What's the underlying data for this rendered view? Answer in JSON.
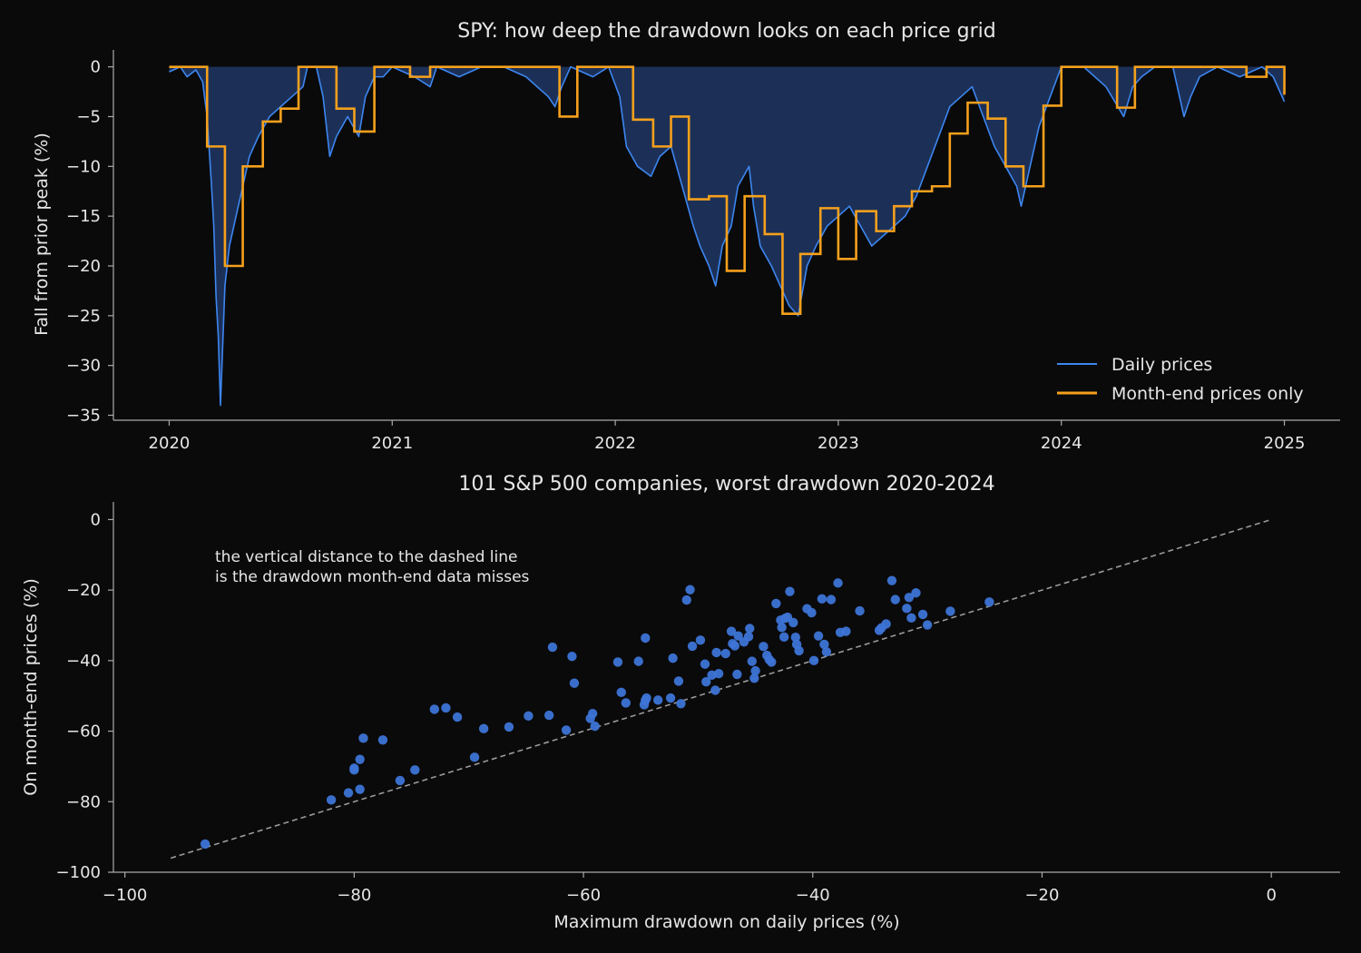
{
  "colors": {
    "background": "#0a0a0a",
    "text": "#e6e6e6",
    "axis": "#aaaaaa",
    "daily_line": "#3d86f0",
    "area_fill": "#1c3057",
    "month_end_line": "#f5a01c",
    "scatter_point": "#3d74d6",
    "diagonal": "#9a9a9a"
  },
  "chart_data": [
    {
      "type": "line",
      "title": "SPY: how deep the drawdown looks on each price grid",
      "xlabel": "",
      "ylabel": "Fall from prior peak (%)",
      "xlim": [
        2019.75,
        2025.25
      ],
      "ylim": [
        -35.5,
        1.7
      ],
      "xticks": [
        2020,
        2021,
        2022,
        2023,
        2024,
        2025
      ],
      "xtick_labels": [
        "2020",
        "2021",
        "2022",
        "2023",
        "2024",
        "2025"
      ],
      "yticks": [
        0,
        -5,
        -10,
        -15,
        -20,
        -25,
        -30,
        -35
      ],
      "ytick_labels": [
        "0",
        "−5",
        "−10",
        "−15",
        "−20",
        "−25",
        "−30",
        "−35"
      ],
      "legend": {
        "position": "lower-right",
        "entries": [
          "Daily prices",
          "Month-end prices only"
        ]
      },
      "series": [
        {
          "name": "Daily prices",
          "style": "line with shaded area to zero",
          "x": [
            2020.0,
            2020.05,
            2020.08,
            2020.12,
            2020.15,
            2020.17,
            2020.19,
            2020.2,
            2020.21,
            2020.22,
            2020.23,
            2020.24,
            2020.25,
            2020.27,
            2020.29,
            2020.31,
            2020.33,
            2020.36,
            2020.4,
            2020.45,
            2020.5,
            2020.55,
            2020.6,
            2020.62,
            2020.66,
            2020.69,
            2020.72,
            2020.75,
            2020.8,
            2020.85,
            2020.88,
            2020.92,
            2020.96,
            2021.0,
            2021.1,
            2021.17,
            2021.2,
            2021.3,
            2021.4,
            2021.5,
            2021.6,
            2021.7,
            2021.73,
            2021.76,
            2021.8,
            2021.9,
            2021.97,
            2022.02,
            2022.05,
            2022.1,
            2022.16,
            2022.2,
            2022.25,
            2022.3,
            2022.35,
            2022.38,
            2022.42,
            2022.45,
            2022.48,
            2022.52,
            2022.55,
            2022.6,
            2022.62,
            2022.65,
            2022.7,
            2022.74,
            2022.78,
            2022.82,
            2022.86,
            2022.9,
            2022.95,
            2023.0,
            2023.05,
            2023.1,
            2023.15,
            2023.2,
            2023.25,
            2023.3,
            2023.35,
            2023.4,
            2023.45,
            2023.5,
            2023.55,
            2023.6,
            2023.65,
            2023.7,
            2023.75,
            2023.8,
            2023.82,
            2023.86,
            2023.9,
            2023.95,
            2024.0,
            2024.1,
            2024.2,
            2024.28,
            2024.32,
            2024.36,
            2024.42,
            2024.5,
            2024.55,
            2024.58,
            2024.62,
            2024.7,
            2024.8,
            2024.9,
            2024.95,
            2025.0
          ],
          "y": [
            -0.5,
            0,
            -1,
            -0.3,
            -1.5,
            -5,
            -12,
            -16,
            -23,
            -27,
            -34,
            -28,
            -22,
            -18,
            -16,
            -14,
            -12,
            -9,
            -7,
            -5,
            -4,
            -3,
            -2,
            0,
            0,
            -3,
            -9,
            -7,
            -5,
            -7,
            -3,
            -1,
            -1,
            0,
            -1,
            -2,
            0,
            -1,
            0,
            0,
            -1,
            -3,
            -4,
            -2,
            0,
            -1,
            0,
            -3,
            -8,
            -10,
            -11,
            -9,
            -8,
            -12,
            -16,
            -18,
            -20,
            -22,
            -18,
            -16,
            -12,
            -10,
            -14,
            -18,
            -20,
            -22,
            -24,
            -25,
            -20,
            -18,
            -16,
            -15,
            -14,
            -16,
            -18,
            -17,
            -16,
            -15,
            -13,
            -10,
            -7,
            -4,
            -3,
            -2,
            -5,
            -8,
            -10,
            -12,
            -14,
            -10,
            -6,
            -3,
            0,
            0,
            -2,
            -5,
            -2,
            -1,
            0,
            0,
            -5,
            -3,
            -1,
            0,
            -1,
            0,
            -1,
            -3.5
          ]
        },
        {
          "name": "Month-end prices only",
          "style": "step",
          "x": [
            2020.0,
            2020.17,
            2020.25,
            2020.33,
            2020.42,
            2020.5,
            2020.58,
            2020.67,
            2020.75,
            2020.83,
            2020.92,
            2021.0,
            2021.08,
            2021.17,
            2021.25,
            2021.33,
            2021.42,
            2021.5,
            2021.58,
            2021.67,
            2021.75,
            2021.83,
            2021.92,
            2022.0,
            2022.08,
            2022.17,
            2022.25,
            2022.33,
            2022.42,
            2022.5,
            2022.58,
            2022.67,
            2022.75,
            2022.83,
            2022.92,
            2023.0,
            2023.08,
            2023.17,
            2023.25,
            2023.33,
            2023.42,
            2023.5,
            2023.58,
            2023.67,
            2023.75,
            2023.83,
            2023.92,
            2024.0,
            2024.08,
            2024.17,
            2024.25,
            2024.33,
            2024.42,
            2024.5,
            2024.58,
            2024.67,
            2024.75,
            2024.83,
            2024.92,
            2025.0
          ],
          "y": [
            0,
            -8,
            -20,
            -10,
            -5.5,
            -4.2,
            0,
            0,
            -4.2,
            -6.5,
            0,
            0,
            -1,
            0,
            0,
            0,
            0,
            0,
            0,
            0,
            -5,
            0,
            0,
            0,
            -5.3,
            -8,
            -5,
            -13.3,
            -13,
            -20.5,
            -13,
            -16.8,
            -24.8,
            -18.8,
            -14.2,
            -19.3,
            -14.5,
            -16.5,
            -14,
            -12.5,
            -12,
            -6.7,
            -3.6,
            -5.2,
            -10,
            -12,
            -3.9,
            0,
            0,
            0,
            -4.1,
            0,
            0,
            0,
            0,
            0,
            0,
            -1,
            0,
            -2.8
          ]
        }
      ]
    },
    {
      "type": "scatter",
      "title": "101 S&P 500 companies, worst drawdown 2020-2024",
      "xlabel": "Maximum drawdown on daily prices (%)",
      "ylabel": "On month-end prices (%)",
      "xlim": [
        -101,
        6
      ],
      "ylim": [
        -100,
        5
      ],
      "xticks": [
        -100,
        -80,
        -60,
        -40,
        -20,
        0
      ],
      "xtick_labels": [
        "−100",
        "−80",
        "−60",
        "−40",
        "−20",
        "0"
      ],
      "yticks": [
        0,
        -20,
        -40,
        -60,
        -80,
        -100
      ],
      "ytick_labels": [
        "0",
        "−20",
        "−40",
        "−60",
        "−80",
        "−100"
      ],
      "annotation": [
        "the vertical distance to the dashed line",
        "is the drawdown month-end data misses"
      ],
      "reference_line": {
        "style": "dashed",
        "x": [
          -96,
          0
        ],
        "y": [
          -96,
          0
        ]
      },
      "series": [
        {
          "x": [
            -93,
            -82,
            -80.5,
            -80,
            -80,
            -79.5,
            -79.5,
            -79.2,
            -77.5,
            -76,
            -74.7,
            -73,
            -72,
            -71,
            -69.5,
            -68.7,
            -66.5,
            -64.8,
            -63,
            -62.7,
            -61.5,
            -61,
            -60.8,
            -59.4,
            -59.2,
            -59,
            -57,
            -56.7,
            -56.3,
            -55.2,
            -54.7,
            -54.6,
            -54.6,
            -54.5,
            -53.5,
            -52.4,
            -52.2,
            -51.7,
            -51.5,
            -50.5,
            -49.8,
            -49.4,
            -49.3,
            -48.8,
            -48.5,
            -48.4,
            -48.2,
            -47.6,
            -47.1,
            -47.0,
            -46.8,
            -46.6,
            -46.5,
            -46.0,
            -45.6,
            -45.5,
            -45.3,
            -45.0,
            -44.3,
            -44.0,
            -43.8,
            -43.6,
            -43.2,
            -42.8,
            -42.7,
            -42.5,
            -42.4,
            -42.2,
            -42.0,
            -41.7,
            -41.5,
            -41.4,
            -41.2,
            -40.5,
            -40.1,
            -39.9,
            -39.5,
            -39.2,
            -39.0,
            -38.8,
            -38.4,
            -37.8,
            -37.6,
            -37.1,
            -35.9,
            -34.2,
            -34.0,
            -33.6,
            -33.1,
            -32.8,
            -31.8,
            -31.6,
            -31.4,
            -31.0,
            -30.4,
            -30.0,
            -28.0,
            -24.6,
            -50.7,
            -51.0,
            -45.1
          ],
          "y": [
            -92,
            -79.5,
            -77.5,
            -71,
            -70.5,
            -76.5,
            -68,
            -62,
            -62.5,
            -74,
            -71,
            -53.8,
            -53.4,
            -56,
            -67.4,
            -59.3,
            -58.8,
            -55.7,
            -55.5,
            -36.2,
            -59.7,
            -38.8,
            -46.4,
            -56.4,
            -55,
            -58.6,
            -40.4,
            -49,
            -52,
            -40.2,
            -52.5,
            -33.6,
            -51.3,
            -50.6,
            -51.2,
            -50.6,
            -39.3,
            -45.8,
            -52.2,
            -35.9,
            -34.2,
            -41,
            -46,
            -44.1,
            -48.4,
            -37.7,
            -43.7,
            -38,
            -31.7,
            -35.2,
            -35.8,
            -43.9,
            -33,
            -34.7,
            -33.2,
            -30.9,
            -40.2,
            -42.9,
            -36,
            -38.5,
            -39.7,
            -40.4,
            -23.8,
            -28.5,
            -30.6,
            -33.3,
            -28,
            -27.7,
            -20.4,
            -29.2,
            -33.4,
            -35.4,
            -37.2,
            -25.3,
            -26.4,
            -40,
            -33,
            -22.5,
            -35.4,
            -37.5,
            -22.7,
            -18,
            -32,
            -31.7,
            -25.9,
            -31.4,
            -30.7,
            -29.6,
            -17.3,
            -22.7,
            -25.2,
            -22.1,
            -27.9,
            -20.8,
            -26.9,
            -29.9,
            -26.0,
            -23.4,
            -19.9,
            -22.8,
            -45
          ]
        }
      ]
    }
  ]
}
